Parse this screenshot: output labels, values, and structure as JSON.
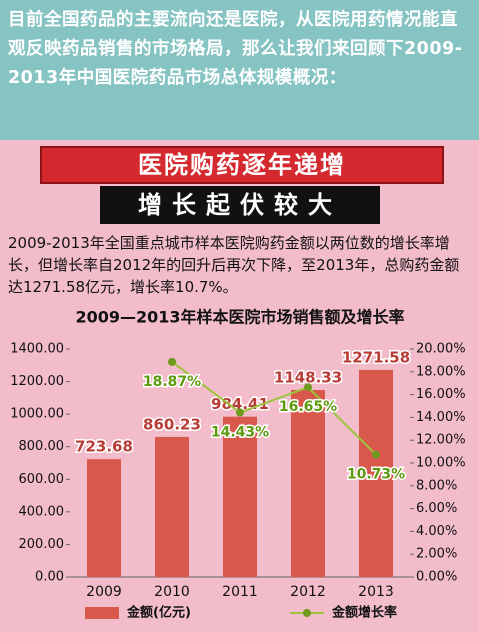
{
  "intro": "目前全国药品的主要流向还是医院，从医院用药情况能直观反映药品销售的市场格局，那么让我们来回顾下2009-2013年中国医院药品市场总体规模概况：",
  "banner": "医院购药逐年递增",
  "subbanner": "增长起伏较大",
  "paragraph": "2009-2013年全国重点城市样本医院购药金额以两位数的增长率增长，但增长率自2012年的回升后再次下降，至2013年，总购药金额达1271.58亿元，增长率10.7%。",
  "chart_data": {
    "type": "bar",
    "title": "2009—2013年样本医院市场销售额及增长率",
    "categories": [
      "2009",
      "2010",
      "2011",
      "2012",
      "2013"
    ],
    "series": [
      {
        "name": "金额(亿元)",
        "color": "#d9584c",
        "type": "bar",
        "values": [
          723.68,
          860.23,
          984.41,
          1148.33,
          1271.58
        ]
      },
      {
        "name": "金额增长率",
        "color": "#9cc43c",
        "type": "line",
        "axis": "y2",
        "values": [
          null,
          18.87,
          14.43,
          16.65,
          10.73
        ],
        "value_labels": [
          null,
          "18.87%",
          "14.43%",
          "16.65%",
          "10.73%"
        ]
      }
    ],
    "ylim": [
      0,
      1400
    ],
    "yticks": [
      {
        "value": 0,
        "label": "0.00"
      },
      {
        "value": 200,
        "label": "200.00"
      },
      {
        "value": 400,
        "label": "400.00"
      },
      {
        "value": 600,
        "label": "600.00"
      },
      {
        "value": 800,
        "label": "800.00"
      },
      {
        "value": 1000,
        "label": "1000.00"
      },
      {
        "value": 1200,
        "label": "1200.00"
      },
      {
        "value": 1400,
        "label": "1400.00"
      }
    ],
    "y2lim": [
      0,
      20
    ],
    "y2ticks": [
      {
        "value": 0,
        "label": "0.00%"
      },
      {
        "value": 2,
        "label": "2.00%"
      },
      {
        "value": 4,
        "label": "4.00%"
      },
      {
        "value": 6,
        "label": "6.00%"
      },
      {
        "value": 8,
        "label": "8.00%"
      },
      {
        "value": 10,
        "label": "10.00%"
      },
      {
        "value": 12,
        "label": "12.00%"
      },
      {
        "value": 14,
        "label": "14.00%"
      },
      {
        "value": 16,
        "label": "16.00%"
      },
      {
        "value": 18,
        "label": "18.00%"
      },
      {
        "value": 20,
        "label": "20.00%"
      }
    ],
    "grid": false,
    "legend": "bottom"
  }
}
